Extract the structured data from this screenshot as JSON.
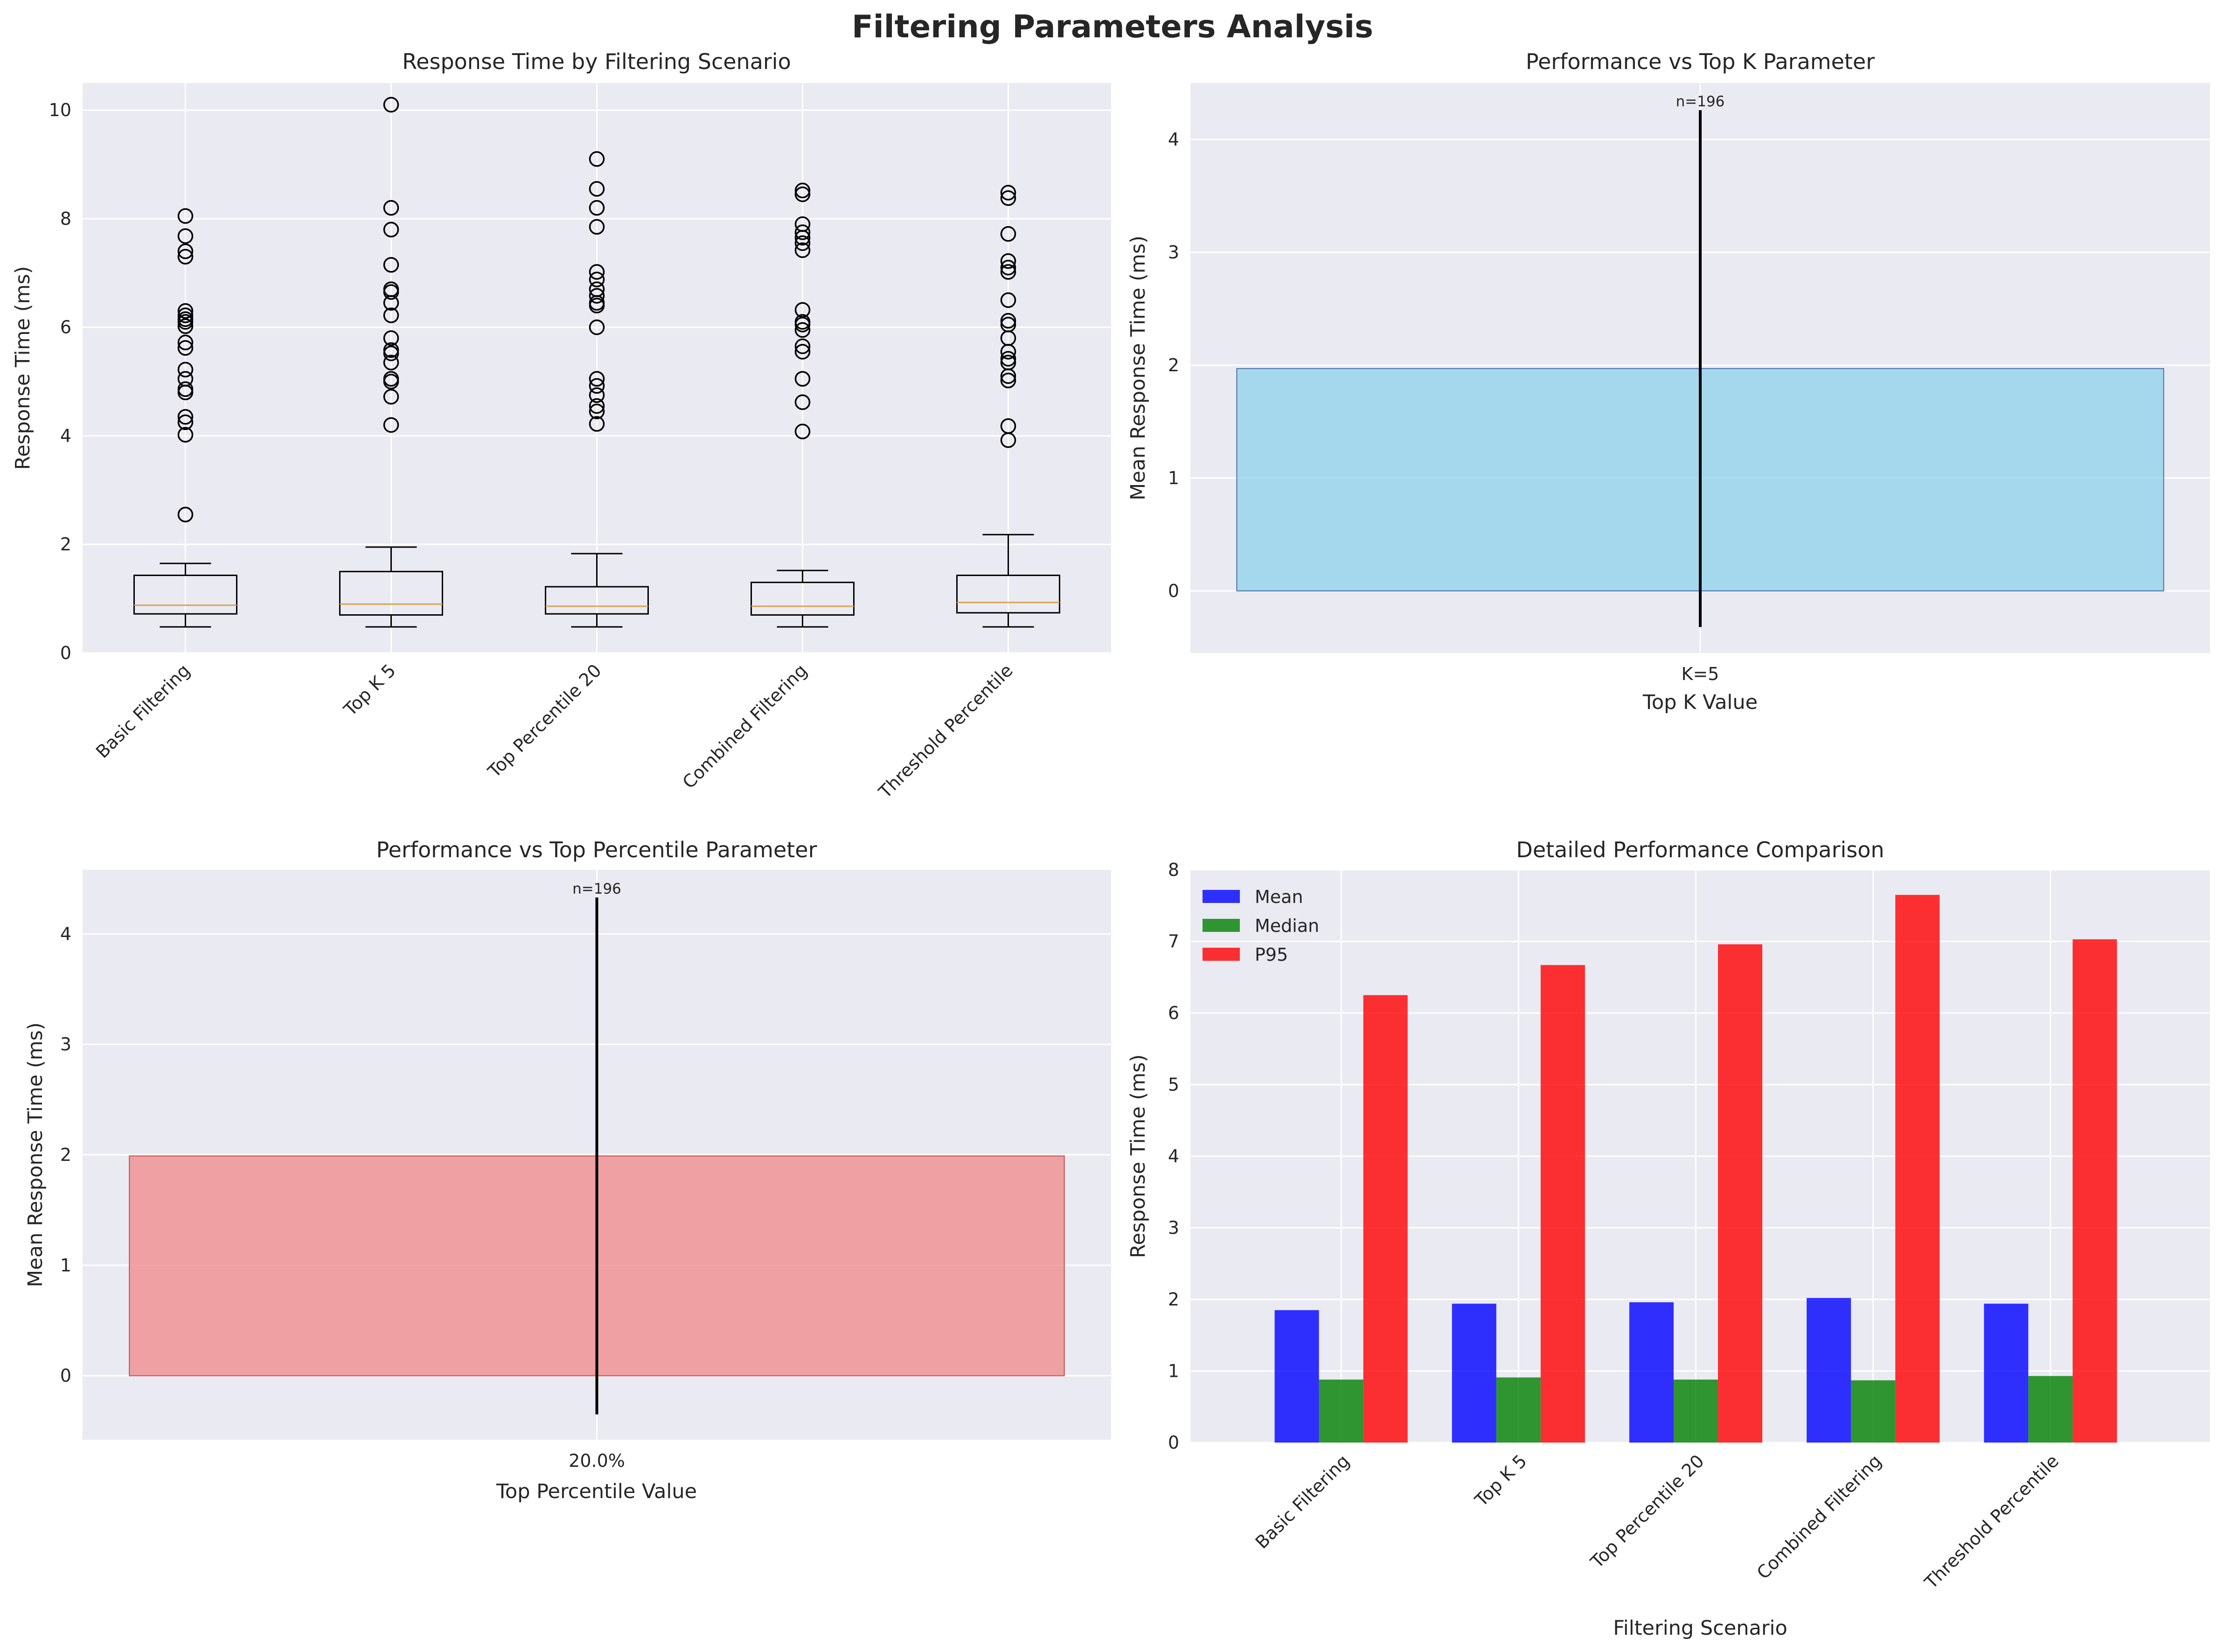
{
  "figure_title": "Filtering Parameters Analysis",
  "colors": {
    "panel_bg": "#eaeaf2",
    "grid": "#ffffff",
    "box_median": "#d6a24e",
    "topk_bar": "#87ceeb",
    "topk_edge": "#4a6fa5",
    "toppct_bar": "#f08080",
    "toppct_edge": "#c0504d",
    "mean": "#0000ff",
    "median": "#008000",
    "p95": "#ff0000"
  },
  "chart_data": [
    {
      "type": "box",
      "title": "Response Time by Filtering Scenario",
      "xlabel": "",
      "ylabel": "Response Time (ms)",
      "ylim": [
        0,
        10.5
      ],
      "yticks": [
        "0",
        "2",
        "4",
        "6",
        "8",
        "10"
      ],
      "categories": [
        "Basic Filtering",
        "Top K 5",
        "Top Percentile 20",
        "Combined Filtering",
        "Threshold Percentile"
      ],
      "boxes": [
        {
          "whislo": 0.48,
          "q1": 0.72,
          "med": 0.88,
          "q3": 1.43,
          "whishi": 1.65,
          "fliers": [
            2.55,
            4.02,
            4.25,
            4.35,
            4.8,
            4.86,
            5.05,
            5.22,
            5.62,
            5.72,
            6.02,
            6.1,
            6.15,
            6.22,
            6.3,
            7.3,
            7.4,
            7.68,
            8.05
          ]
        },
        {
          "whislo": 0.48,
          "q1": 0.7,
          "med": 0.9,
          "q3": 1.5,
          "whishi": 1.95,
          "fliers": [
            4.2,
            4.72,
            5.0,
            5.05,
            5.35,
            5.52,
            5.58,
            5.8,
            6.22,
            6.45,
            6.65,
            6.7,
            7.15,
            7.8,
            8.2,
            10.1
          ]
        },
        {
          "whislo": 0.48,
          "q1": 0.72,
          "med": 0.86,
          "q3": 1.22,
          "whishi": 1.83,
          "fliers": [
            4.22,
            4.45,
            4.55,
            4.75,
            4.92,
            5.05,
            6.0,
            6.4,
            6.45,
            6.58,
            6.7,
            6.88,
            7.02,
            7.85,
            8.2,
            8.55,
            9.1
          ]
        },
        {
          "whislo": 0.48,
          "q1": 0.7,
          "med": 0.86,
          "q3": 1.3,
          "whishi": 1.52,
          "fliers": [
            4.08,
            4.62,
            5.05,
            5.55,
            5.65,
            5.95,
            6.05,
            6.1,
            6.32,
            7.42,
            7.55,
            7.65,
            7.75,
            7.9,
            8.45,
            8.52
          ]
        },
        {
          "whislo": 0.48,
          "q1": 0.74,
          "med": 0.93,
          "q3": 1.43,
          "whishi": 2.18,
          "fliers": [
            3.92,
            4.18,
            5.02,
            5.1,
            5.35,
            5.42,
            5.55,
            5.8,
            6.05,
            6.12,
            6.5,
            7.02,
            7.1,
            7.22,
            7.72,
            8.38,
            8.48
          ]
        }
      ]
    },
    {
      "type": "bar",
      "title": "Performance vs Top K Parameter",
      "xlabel": "Top K Value",
      "ylabel": "Mean Response Time (ms)",
      "ylim": [
        -0.55,
        4.5
      ],
      "yticks": [
        "0",
        "1",
        "2",
        "3",
        "4"
      ],
      "categories": [
        "K=5"
      ],
      "values": [
        1.97
      ],
      "error": [
        2.29
      ],
      "annotations": [
        "n=196"
      ]
    },
    {
      "type": "bar",
      "title": "Performance vs Top Percentile Parameter",
      "xlabel": "Top Percentile Value",
      "ylabel": "Mean Response Time (ms)",
      "ylim": [
        -0.58,
        4.58
      ],
      "yticks": [
        "0",
        "1",
        "2",
        "3",
        "4"
      ],
      "categories": [
        "20.0%"
      ],
      "values": [
        1.99
      ],
      "error": [
        2.34
      ],
      "annotations": [
        "n=196"
      ]
    },
    {
      "type": "bar",
      "title": "Detailed Performance Comparison",
      "xlabel": "Filtering Scenario",
      "ylabel": "Response Time (ms)",
      "ylim": [
        0,
        8
      ],
      "yticks": [
        "0",
        "1",
        "2",
        "3",
        "4",
        "5",
        "6",
        "7",
        "8"
      ],
      "categories": [
        "Basic Filtering",
        "Top K 5",
        "Top Percentile 20",
        "Combined Filtering",
        "Threshold Percentile"
      ],
      "series": [
        {
          "name": "Mean",
          "values": [
            1.85,
            1.94,
            1.96,
            2.02,
            1.94
          ]
        },
        {
          "name": "Median",
          "values": [
            0.88,
            0.91,
            0.88,
            0.87,
            0.93
          ]
        },
        {
          "name": "P95",
          "values": [
            6.25,
            6.67,
            6.96,
            7.65,
            7.03
          ]
        }
      ],
      "legend": "top-left"
    }
  ]
}
